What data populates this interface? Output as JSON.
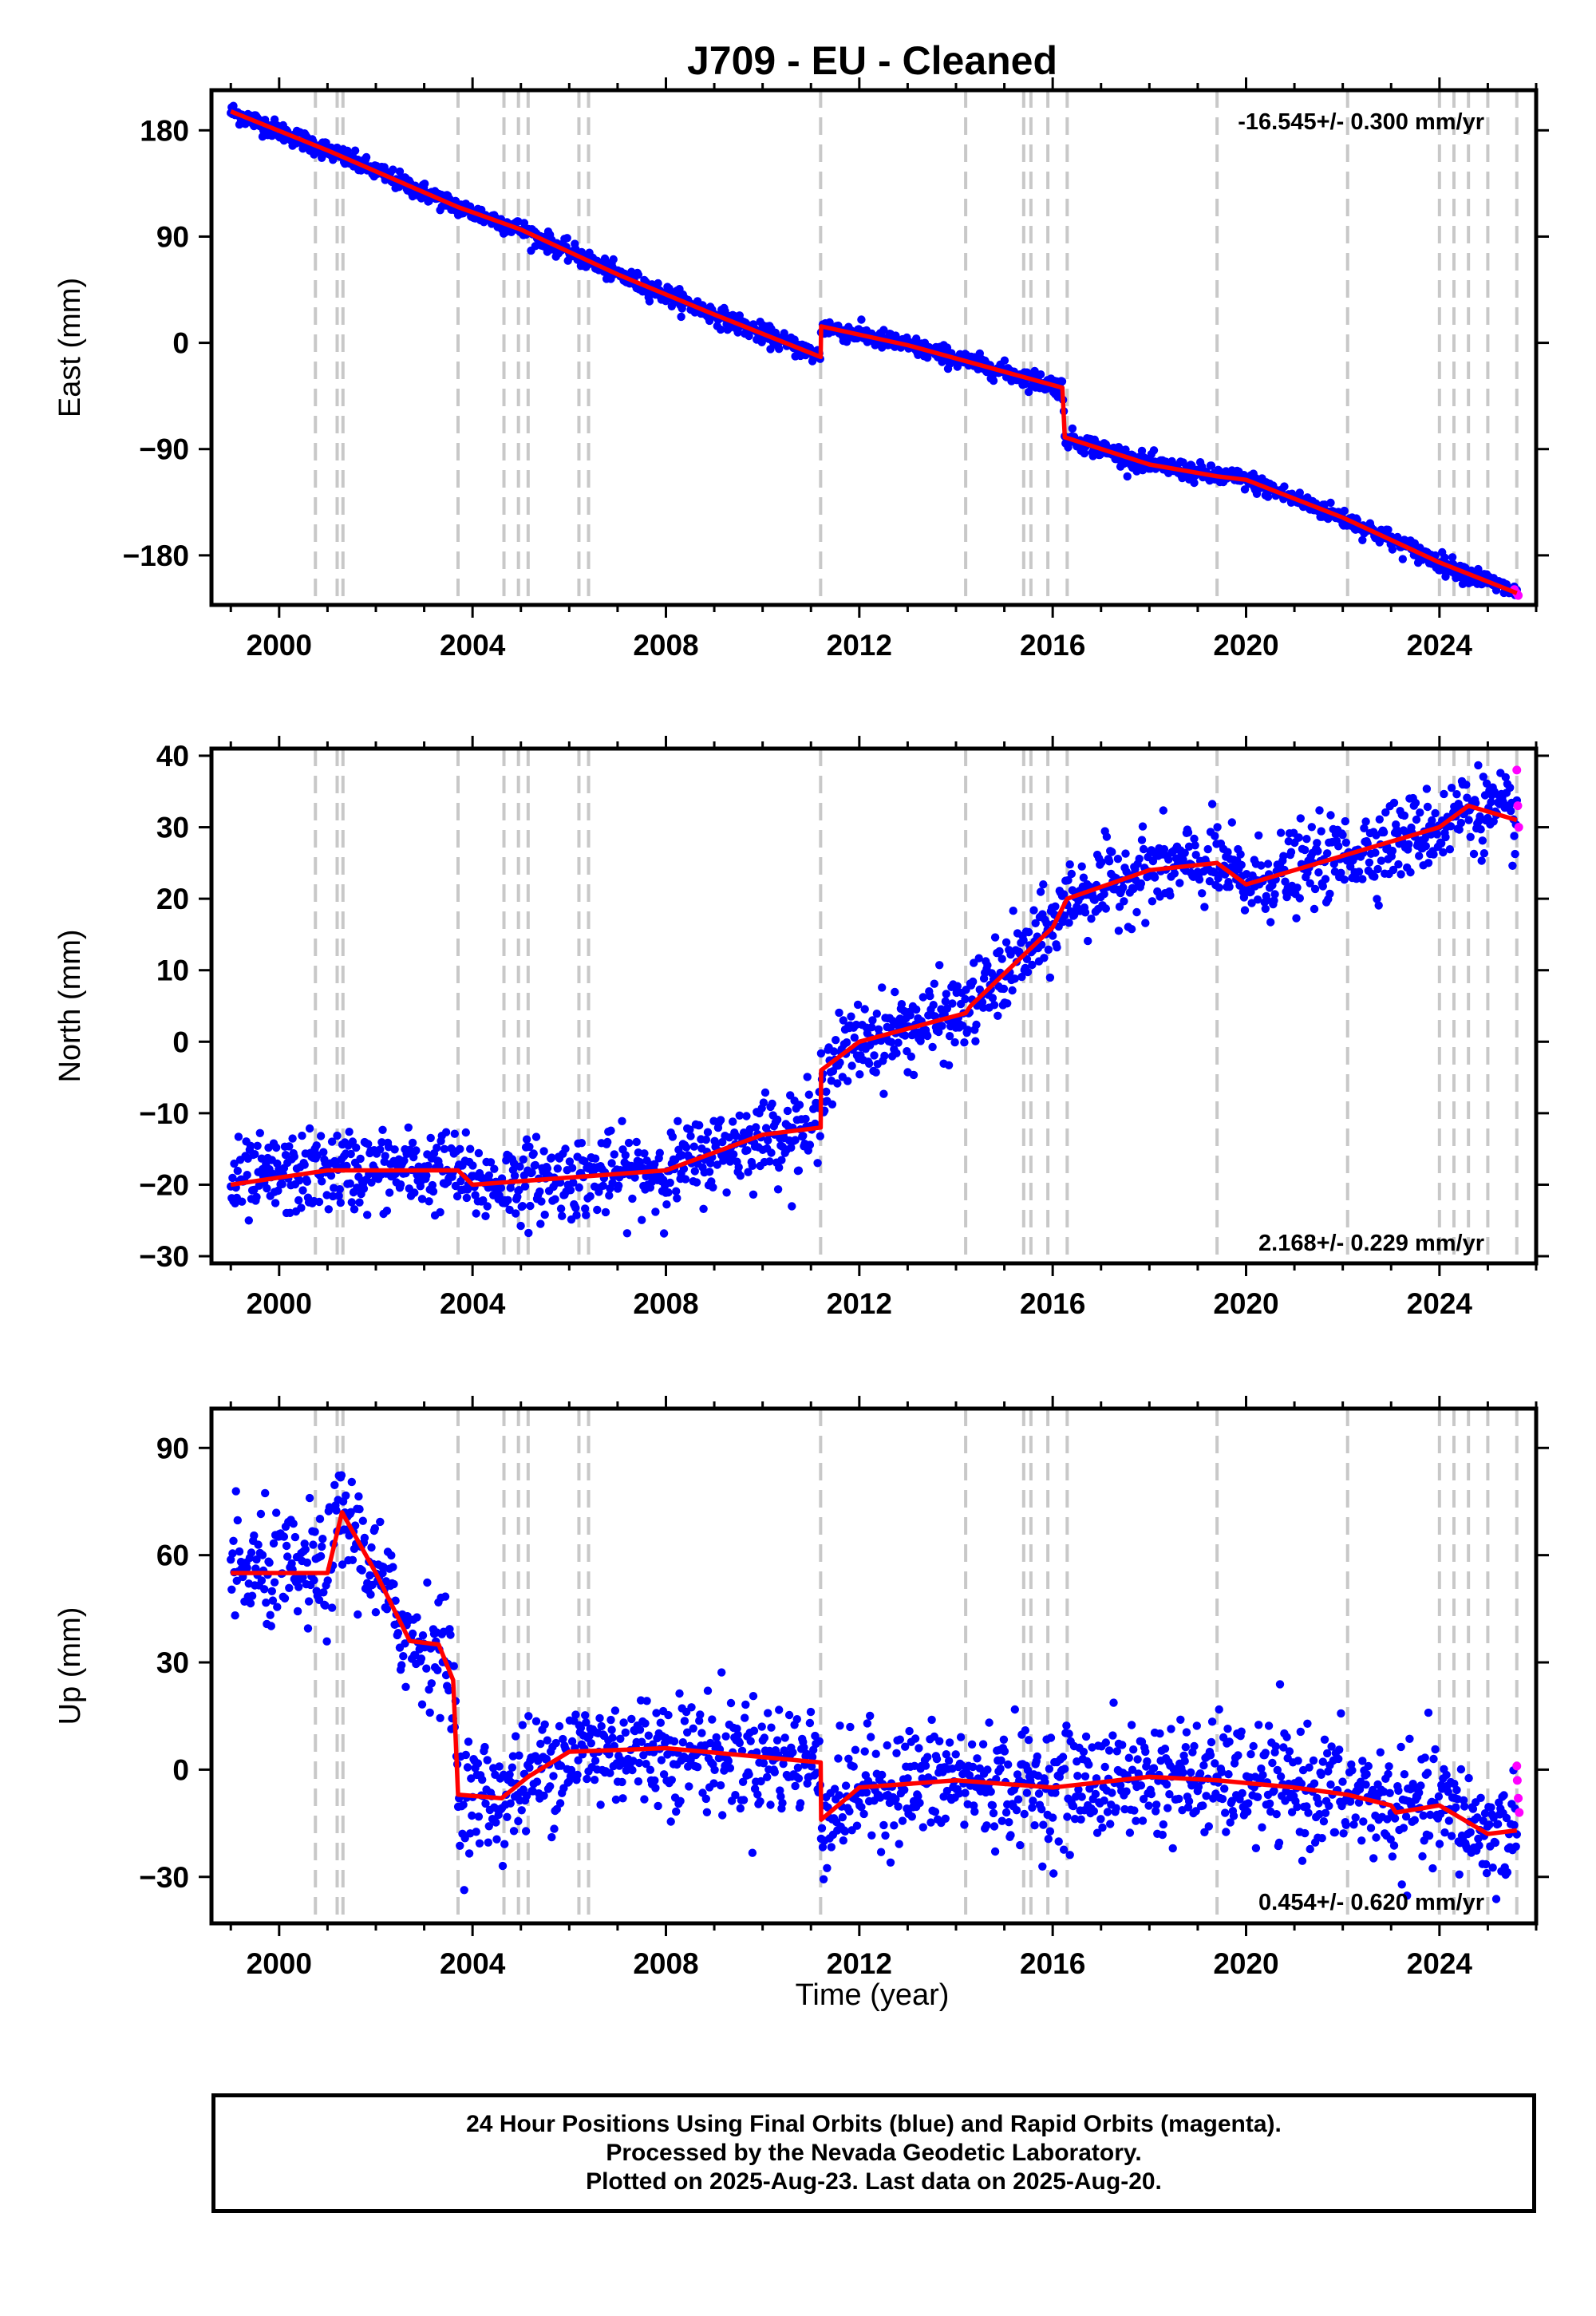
{
  "title": "J709  - EU - Cleaned",
  "colors": {
    "final": "#0000ff",
    "rapid": "#ff00ff",
    "model": "#ff0000",
    "event": "#c8c8c8"
  },
  "xlabel": "Time (year)",
  "footer": {
    "line1": "24 Hour Positions Using Final Orbits (blue) and Rapid Orbits (magenta).",
    "line2": "Processed by the Nevada Geodetic Laboratory.",
    "line3": "Plotted on 2025-Aug-23. Last data on 2025-Aug-20."
  },
  "chart_data": [
    {
      "type": "scatter",
      "component": "east",
      "ylabel": "East (mm)",
      "rate": "-16.545+/- 0.300 mm/yr",
      "xlim": [
        1998.6,
        2026.0
      ],
      "ylim": [
        -222,
        214
      ],
      "xticks": [
        2000,
        2004,
        2008,
        2012,
        2016,
        2020,
        2024
      ],
      "yticks": [
        -180,
        -90,
        0,
        90,
        180
      ],
      "event_lines": [
        2000.75,
        2001.2,
        2001.32,
        2003.7,
        2004.65,
        2004.95,
        2005.15,
        2006.2,
        2006.4,
        2011.2,
        2014.2,
        2015.4,
        2015.55,
        2015.9,
        2016.3,
        2019.4,
        2022.1,
        2024.0,
        2024.3,
        2024.6,
        2025.0,
        2025.6
      ],
      "model_line": [
        [
          1999.0,
          196
        ],
        [
          2001.0,
          163
        ],
        [
          2003.7,
          115
        ],
        [
          2005.0,
          96
        ],
        [
          2007.0,
          58
        ],
        [
          2009.0,
          24
        ],
        [
          2011.2,
          -12
        ],
        [
          2011.21,
          14
        ],
        [
          2013.0,
          -2
        ],
        [
          2016.2,
          -38
        ],
        [
          2016.25,
          -80
        ],
        [
          2018.0,
          -103
        ],
        [
          2019.4,
          -113
        ],
        [
          2020.0,
          -116
        ],
        [
          2022.0,
          -148
        ],
        [
          2024.0,
          -186
        ],
        [
          2025.6,
          -212
        ]
      ],
      "rapid_points": [
        [
          2025.55,
          -209
        ],
        [
          2025.6,
          -212
        ],
        [
          2025.63,
          -214
        ]
      ],
      "noise_mm": 4
    },
    {
      "type": "scatter",
      "component": "north",
      "ylabel": "North (mm)",
      "rate": "2.168+/- 0.229 mm/yr",
      "xlim": [
        1998.6,
        2026.0
      ],
      "ylim": [
        -31,
        41
      ],
      "xticks": [
        2000,
        2004,
        2008,
        2012,
        2016,
        2020,
        2024
      ],
      "yticks": [
        -30,
        -20,
        -10,
        0,
        10,
        20,
        30,
        40
      ],
      "event_lines": [
        2000.75,
        2001.2,
        2001.32,
        2003.7,
        2004.65,
        2004.95,
        2005.15,
        2006.2,
        2006.4,
        2011.2,
        2014.2,
        2015.4,
        2015.55,
        2015.9,
        2016.3,
        2019.4,
        2022.1,
        2024.0,
        2024.3,
        2024.6,
        2025.0,
        2025.6
      ],
      "model_line": [
        [
          1999.0,
          -20
        ],
        [
          2001.0,
          -18
        ],
        [
          2003.7,
          -18
        ],
        [
          2004.0,
          -20
        ],
        [
          2006.0,
          -19
        ],
        [
          2008.0,
          -18
        ],
        [
          2010.0,
          -13
        ],
        [
          2011.2,
          -12
        ],
        [
          2011.21,
          -4
        ],
        [
          2012.0,
          0
        ],
        [
          2014.2,
          4
        ],
        [
          2014.3,
          5
        ],
        [
          2016.0,
          16
        ],
        [
          2016.3,
          20
        ],
        [
          2018.0,
          24
        ],
        [
          2019.4,
          25
        ],
        [
          2020.0,
          22
        ],
        [
          2022.0,
          26
        ],
        [
          2024.0,
          30
        ],
        [
          2024.6,
          33
        ],
        [
          2025.6,
          31
        ]
      ],
      "rapid_points": [
        [
          2025.6,
          38
        ],
        [
          2025.62,
          33
        ],
        [
          2025.64,
          30
        ]
      ],
      "noise_mm": 2.8
    },
    {
      "type": "scatter",
      "component": "up",
      "ylabel": "Up (mm)",
      "rate": "0.454+/- 0.620 mm/yr",
      "xlim": [
        1998.6,
        2026.0
      ],
      "ylim": [
        -43,
        101
      ],
      "xticks": [
        2000,
        2004,
        2008,
        2012,
        2016,
        2020,
        2024
      ],
      "yticks": [
        -30,
        0,
        30,
        60,
        90
      ],
      "event_lines": [
        2000.75,
        2001.2,
        2001.32,
        2003.7,
        2004.65,
        2004.95,
        2005.15,
        2006.2,
        2006.4,
        2011.2,
        2014.2,
        2015.4,
        2015.55,
        2015.9,
        2016.3,
        2019.4,
        2022.1,
        2024.0,
        2024.3,
        2024.6,
        2025.0,
        2025.6
      ],
      "model_line": [
        [
          1999.0,
          55
        ],
        [
          2001.0,
          55
        ],
        [
          2001.3,
          72
        ],
        [
          2002.0,
          55
        ],
        [
          2002.7,
          36
        ],
        [
          2003.3,
          35
        ],
        [
          2003.6,
          25
        ],
        [
          2003.7,
          -7
        ],
        [
          2004.6,
          -8
        ],
        [
          2005.15,
          -2
        ],
        [
          2006.0,
          5
        ],
        [
          2008.0,
          6
        ],
        [
          2011.2,
          2
        ],
        [
          2011.21,
          -14
        ],
        [
          2012.0,
          -5
        ],
        [
          2014.0,
          -3
        ],
        [
          2016.0,
          -5
        ],
        [
          2018.0,
          -2
        ],
        [
          2019.4,
          -3
        ],
        [
          2021.0,
          -5
        ],
        [
          2022.1,
          -7
        ],
        [
          2023.0,
          -10
        ],
        [
          2023.1,
          -12
        ],
        [
          2024.0,
          -10
        ],
        [
          2025.0,
          -18
        ],
        [
          2025.6,
          -17
        ]
      ],
      "rapid_points": [
        [
          2025.6,
          1
        ],
        [
          2025.61,
          -3
        ],
        [
          2025.63,
          -8
        ],
        [
          2025.65,
          -12
        ]
      ],
      "noise_mm": 8
    }
  ]
}
